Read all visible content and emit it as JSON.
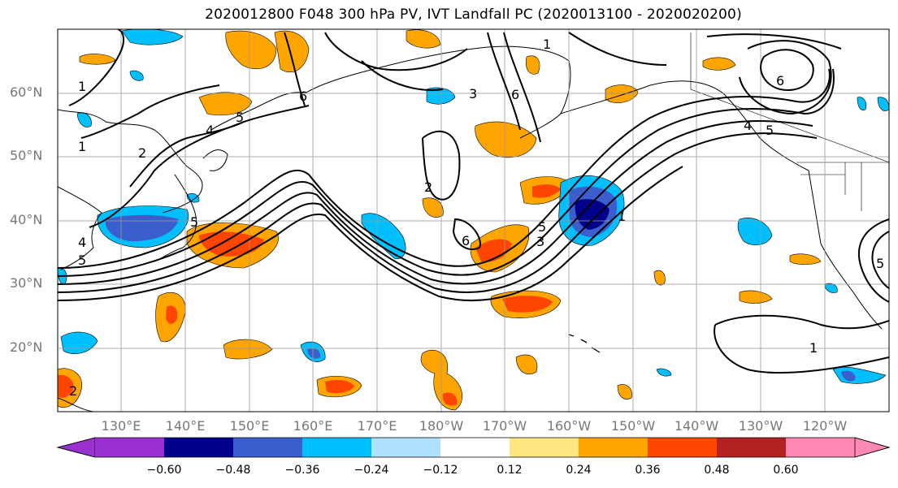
{
  "title": "2020012800 F048 300 hPa PV, IVT Landfall PC (2020013100 - 2020020200)",
  "latitude_labels": [
    "60°N",
    "50°N",
    "40°N",
    "30°N",
    "20°N"
  ],
  "longitude_labels": [
    "130°E",
    "140°E",
    "150°E",
    "160°E",
    "170°E",
    "180°W",
    "170°W",
    "160°W",
    "150°W",
    "140°W",
    "130°W",
    "120°W"
  ],
  "colorbar": {
    "tick_labels": [
      "−0.60",
      "−0.48",
      "−0.36",
      "−0.24",
      "−0.12",
      "0.12",
      "0.24",
      "0.36",
      "0.48",
      "0.60"
    ],
    "colors": [
      "#9b30d0",
      "#00008b",
      "#3a5fcd",
      "#00bfff",
      "#b0e2ff",
      "#ffffff",
      "#ffe680",
      "#ffa500",
      "#ff4500",
      "#b22222",
      "#ff88b4"
    ]
  },
  "contour_labels": [
    "1",
    "1",
    "2",
    "4",
    "5",
    "5",
    "6",
    "3",
    "2",
    "6",
    "5",
    "3",
    "1",
    "5",
    "6",
    "4",
    "5",
    "1",
    "5",
    "1",
    "2",
    "4",
    "6"
  ]
}
